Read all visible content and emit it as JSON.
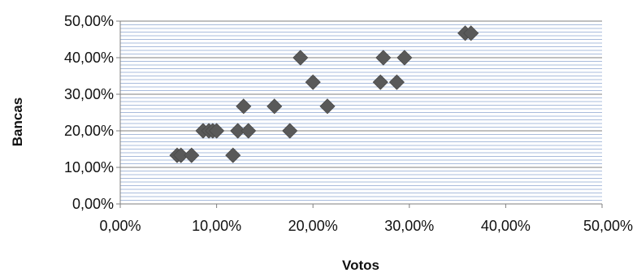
{
  "chart_data": {
    "type": "scatter",
    "xlabel": "Votos",
    "ylabel": "Bancas",
    "xlim": [
      0,
      50
    ],
    "ylim": [
      0,
      50
    ],
    "x_ticks": [
      "0,00%",
      "10,00%",
      "20,00%",
      "30,00%",
      "40,00%",
      "50,00%"
    ],
    "y_ticks": [
      "0,00%",
      "10,00%",
      "20,00%",
      "30,00%",
      "40,00%",
      "50,00%"
    ],
    "grid": "horizontal, major and minor",
    "marker": "diamond",
    "colors": {
      "marker": "#595959",
      "major_grid": "#7f7f7f",
      "minor_grid": "#a9bcdc",
      "axis": "#7f7f7f"
    },
    "points": [
      {
        "x": 5.9,
        "y": 13.3
      },
      {
        "x": 6.3,
        "y": 13.3
      },
      {
        "x": 7.4,
        "y": 13.3
      },
      {
        "x": 11.7,
        "y": 13.3
      },
      {
        "x": 8.6,
        "y": 20.0
      },
      {
        "x": 9.2,
        "y": 20.0
      },
      {
        "x": 9.6,
        "y": 20.0
      },
      {
        "x": 10.0,
        "y": 20.0
      },
      {
        "x": 12.2,
        "y": 20.0
      },
      {
        "x": 13.3,
        "y": 20.0
      },
      {
        "x": 17.6,
        "y": 20.0
      },
      {
        "x": 12.8,
        "y": 26.7
      },
      {
        "x": 16.0,
        "y": 26.7
      },
      {
        "x": 21.5,
        "y": 26.7
      },
      {
        "x": 20.0,
        "y": 33.3
      },
      {
        "x": 27.0,
        "y": 33.3
      },
      {
        "x": 28.7,
        "y": 33.3
      },
      {
        "x": 18.7,
        "y": 40.0
      },
      {
        "x": 27.3,
        "y": 40.0
      },
      {
        "x": 29.5,
        "y": 40.0
      },
      {
        "x": 35.8,
        "y": 46.7
      },
      {
        "x": 36.4,
        "y": 46.7
      }
    ]
  }
}
